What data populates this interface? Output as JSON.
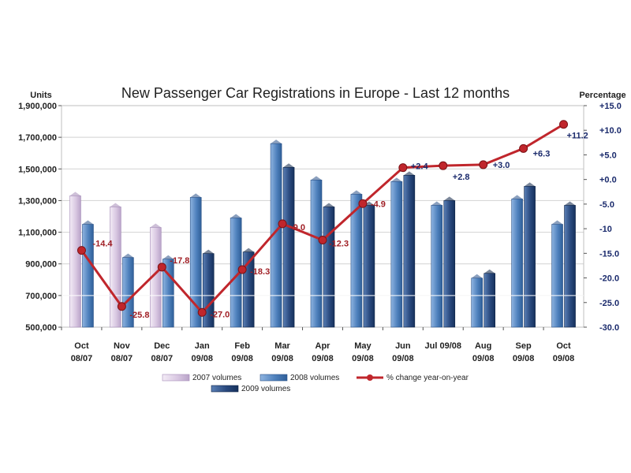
{
  "chart_data": {
    "type": "bar",
    "title": "New Passenger Car Registrations in Europe - Last 12 months",
    "ylabel_left": "Units",
    "ylabel_right": "Percentage",
    "categories": [
      [
        "Oct",
        "08/07"
      ],
      [
        "Nov",
        "08/07"
      ],
      [
        "Dec",
        "08/07"
      ],
      [
        "Jan",
        "09/08"
      ],
      [
        "Feb",
        "09/08"
      ],
      [
        "Mar",
        "09/08"
      ],
      [
        "Apr",
        "09/08"
      ],
      [
        "May",
        "09/08"
      ],
      [
        "Jun",
        "09/08"
      ],
      [
        "Jul 09/08",
        ""
      ],
      [
        "Aug",
        "09/08"
      ],
      [
        "Sep",
        "09/08"
      ],
      [
        "Oct",
        "09/08"
      ]
    ],
    "ylim_left": [
      500000,
      1900000
    ],
    "yticks_left": [
      "1,900,000",
      "1,700,000",
      "1,500,000",
      "1,300,000",
      "1,100,000",
      "900,000",
      "700,000",
      "500,000"
    ],
    "ylim_right": [
      -30,
      15
    ],
    "yticks_right": [
      "+15.0",
      "+10.0",
      "+5.0",
      "+0.0",
      "-5.0",
      "-10",
      "-15.0",
      "-20.0",
      "-25.0",
      "-30.0"
    ],
    "grid": true,
    "legend_position": "bottom",
    "series": [
      {
        "name": "2007 volumes",
        "kind": "bar",
        "color": "#e3d6ea",
        "values": [
          1330000,
          1260000,
          1130000,
          null,
          null,
          null,
          null,
          null,
          null,
          null,
          null,
          null,
          null
        ]
      },
      {
        "name": "2008 volumes",
        "kind": "bar",
        "color": "#4f81bd",
        "values": [
          1150000,
          940000,
          930000,
          1320000,
          1190000,
          1660000,
          1430000,
          1340000,
          1420000,
          1270000,
          810000,
          1310000,
          1150000
        ]
      },
      {
        "name": "2009 volumes",
        "kind": "bar",
        "color": "#2a4a7f",
        "values": [
          null,
          null,
          null,
          965000,
          975000,
          1510000,
          1260000,
          1270000,
          1460000,
          1300000,
          840000,
          1390000,
          1270000
        ]
      },
      {
        "name": "% change year-on-year",
        "kind": "line",
        "color": "#c0262c",
        "values": [
          -14.4,
          -25.8,
          -17.8,
          -27.0,
          -18.3,
          -9.0,
          -12.3,
          -4.9,
          2.4,
          2.8,
          3.0,
          6.3,
          11.2
        ],
        "labels": [
          "-14.4",
          "-25.8",
          "-17.8",
          "-27.0",
          "-18.3",
          "-9.0",
          "-12.3",
          "-4.9",
          "+2.4",
          "+2.8",
          "+3.0",
          "+6.3",
          "+11.2"
        ],
        "label_colors": [
          "#a01f25",
          "#a01f25",
          "#a01f25",
          "#a01f25",
          "#a01f25",
          "#a01f25",
          "#a01f25",
          "#a01f25",
          "#1a2a6c",
          "#1a2a6c",
          "#1a2a6c",
          "#1a2a6c",
          "#1a2a6c"
        ]
      }
    ]
  }
}
